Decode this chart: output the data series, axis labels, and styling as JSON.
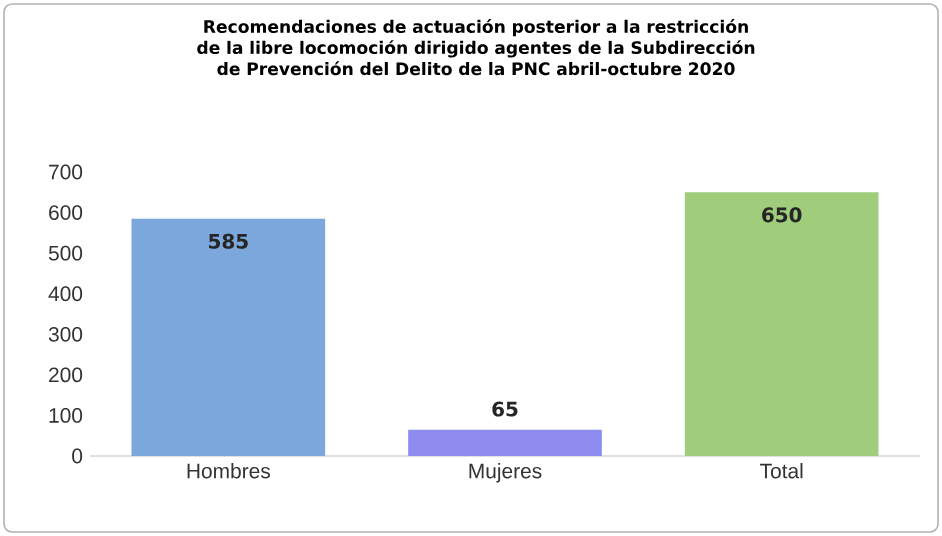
{
  "chart_data": {
    "type": "bar",
    "title": "Recomendaciones de actuación posterior a la restricción de la libre locomoción dirigido agentes de la Subdirección de Prevención del Delito de la PNC abril-octubre 2020",
    "categories": [
      "Hombres",
      "Mujeres",
      "Total"
    ],
    "values": [
      585,
      65,
      650
    ],
    "colors": [
      "#7ba7dc",
      "#8f8cf0",
      "#9fcd7b"
    ],
    "ylim": [
      0,
      700
    ],
    "yticks": [
      0,
      100,
      200,
      300,
      400,
      500,
      600,
      700
    ],
    "data_labels": true
  }
}
